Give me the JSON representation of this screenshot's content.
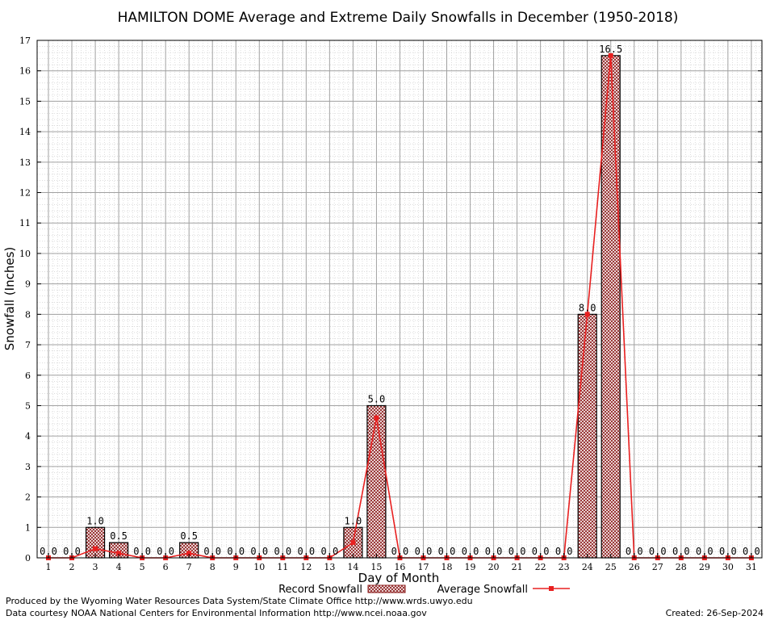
{
  "chart_data": {
    "type": "bar",
    "title": "HAMILTON DOME Average and Extreme Daily Snowfalls in December (1950-2018)",
    "xlabel": "Day of Month",
    "ylabel": "Snowfall (Inches)",
    "ylim": [
      0,
      17
    ],
    "yticks": [
      0,
      1,
      2,
      3,
      4,
      5,
      6,
      7,
      8,
      9,
      10,
      11,
      12,
      13,
      14,
      15,
      16,
      17
    ],
    "grid": true,
    "legend_position": "bottom",
    "categories": [
      "1",
      "2",
      "3",
      "4",
      "5",
      "6",
      "7",
      "8",
      "9",
      "10",
      "11",
      "12",
      "13",
      "14",
      "15",
      "16",
      "17",
      "18",
      "19",
      "20",
      "21",
      "22",
      "23",
      "24",
      "25",
      "26",
      "27",
      "28",
      "29",
      "30",
      "31"
    ],
    "series": [
      {
        "name": "Record Snowfall",
        "type": "bar",
        "values": [
          0.0,
          0.0,
          1.0,
          0.5,
          0.0,
          0.0,
          0.5,
          0.0,
          0.0,
          0.0,
          0.0,
          0.0,
          0.0,
          1.0,
          5.0,
          0.0,
          0.0,
          0.0,
          0.0,
          0.0,
          0.0,
          0.0,
          0.0,
          8.0,
          16.5,
          0.0,
          0.0,
          0.0,
          0.0,
          0.0,
          0.0
        ],
        "labels": [
          "0.0",
          "0.0",
          "1.0",
          "0.5",
          "0.0",
          "0.0",
          "0.5",
          "0.0",
          "0.0",
          "0.0",
          "0.0",
          "0.0",
          "0.0",
          "1.0",
          "5.0",
          "0.0",
          "0.0",
          "0.0",
          "0.0",
          "0.0",
          "0.0",
          "0.0",
          "0.0",
          "8.0",
          "16.5",
          "0.0",
          "0.0",
          "0.0",
          "0.0",
          "0.0",
          "0.0"
        ],
        "color": "#8b1a1a"
      },
      {
        "name": "Average Snowfall",
        "type": "line",
        "values": [
          0.0,
          0.0,
          0.3,
          0.15,
          0.0,
          0.0,
          0.15,
          0.0,
          0.0,
          0.0,
          0.0,
          0.0,
          0.0,
          0.5,
          4.6,
          0.0,
          0.0,
          0.0,
          0.0,
          0.0,
          0.0,
          0.0,
          0.0,
          8.0,
          16.5,
          0.0,
          0.0,
          0.0,
          0.0,
          0.0,
          0.0
        ],
        "color": "#e82020"
      }
    ]
  },
  "footer": {
    "produced_by": "Produced by the Wyoming Water Resources Data System/State Climate Office http://www.wrds.uwyo.edu",
    "courtesy": "Data courtesy NOAA National Centers for Environmental Information http://www.ncei.noaa.gov",
    "created": "Created:  26-Sep-2024"
  }
}
